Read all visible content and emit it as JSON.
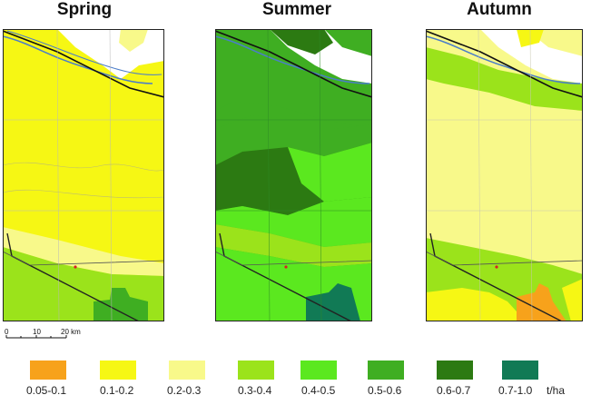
{
  "panels": [
    {
      "title": "Spring"
    },
    {
      "title": "Summer"
    },
    {
      "title": "Autumn"
    }
  ],
  "scale": {
    "ticks": [
      "0",
      "10",
      "20 km"
    ]
  },
  "legend": {
    "unit": "t/ha",
    "classes": [
      {
        "label": "0.05-0.1",
        "color": "#f7a21b"
      },
      {
        "label": "0.1-0.2",
        "color": "#f6f714"
      },
      {
        "label": "0.2-0.3",
        "color": "#f8f98a"
      },
      {
        "label": "0.3-0.4",
        "color": "#9be31b"
      },
      {
        "label": "0.4-0.5",
        "color": "#5be81f"
      },
      {
        "label": "0.5-0.6",
        "color": "#3fae22"
      },
      {
        "label": "0.6-0.7",
        "color": "#2c7a12"
      },
      {
        "label": "0.7-1.0",
        "color": "#117a55"
      }
    ]
  }
}
